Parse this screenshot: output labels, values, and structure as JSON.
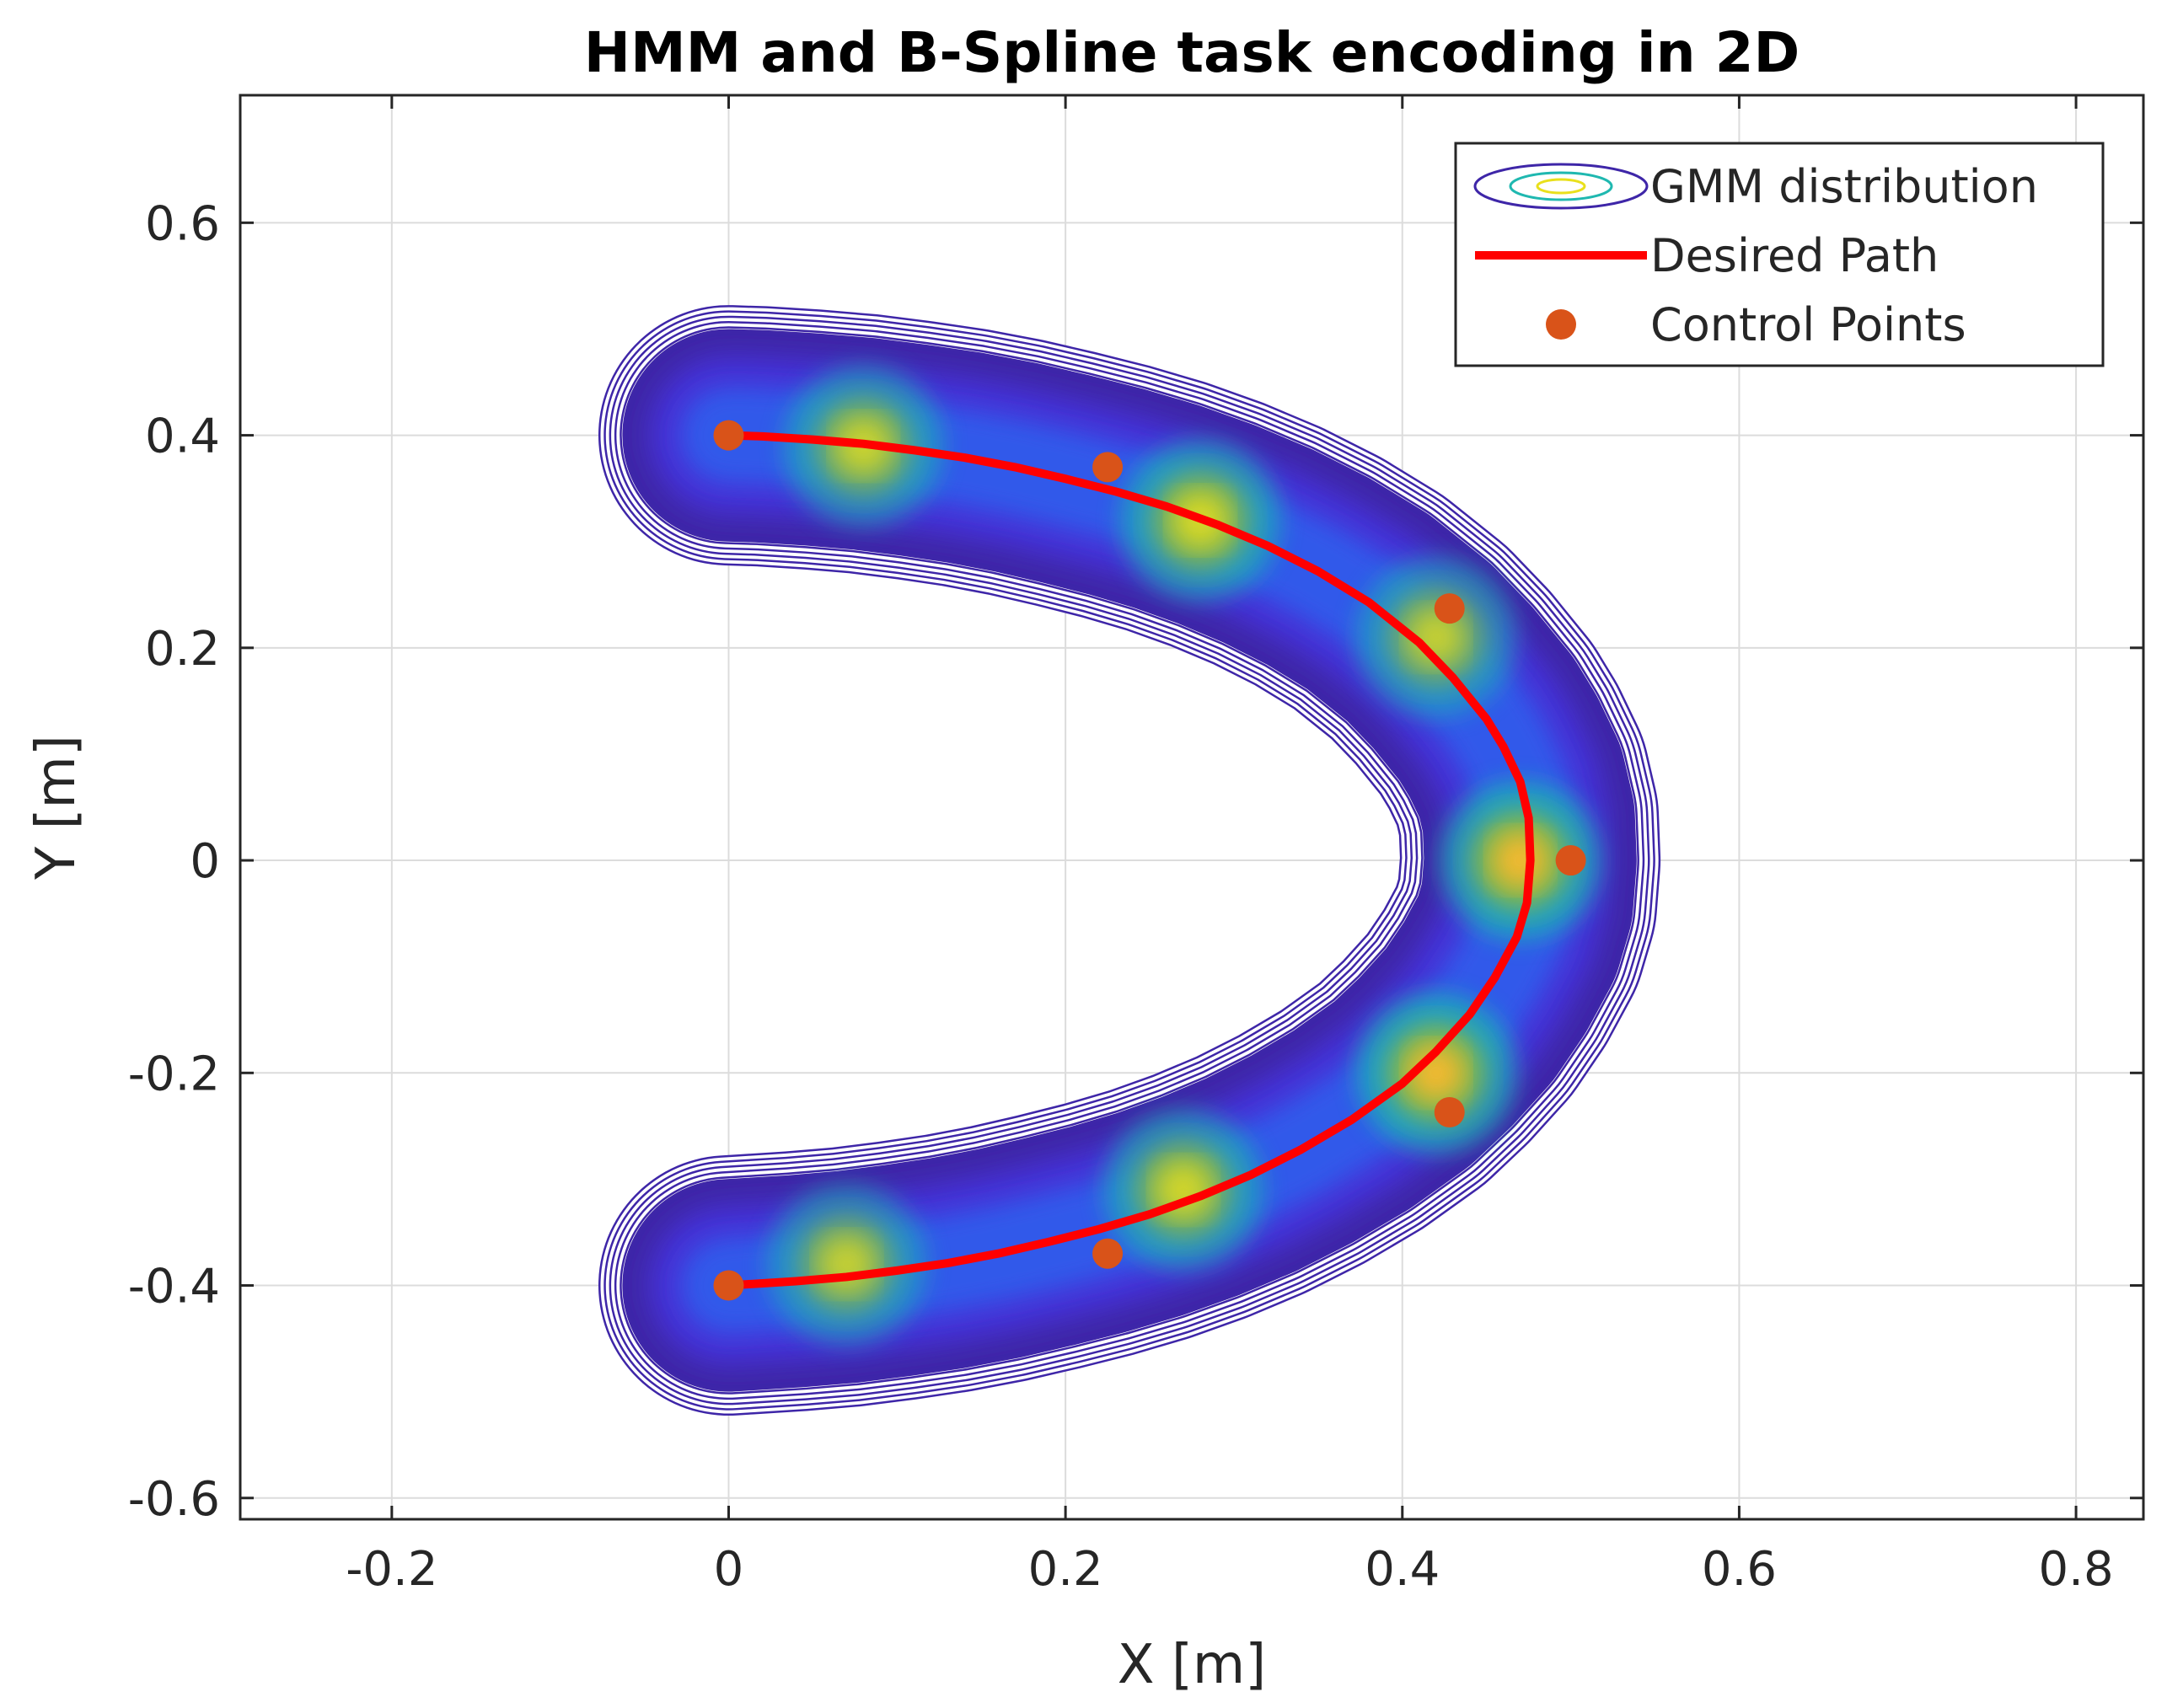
{
  "chart_data": {
    "type": "scatter",
    "title": "HMM and B-Spline task encoding in 2D",
    "xlabel": "X [m]",
    "ylabel": "Y [m]",
    "xlim": [
      -0.29,
      0.84
    ],
    "ylim": [
      -0.62,
      0.72
    ],
    "xticks": [
      -0.2,
      0,
      0.2,
      0.4,
      0.6,
      0.8
    ],
    "xtick_labels": [
      "-0.2",
      "0",
      "0.2",
      "0.4",
      "0.6",
      "0.8"
    ],
    "yticks": [
      -0.6,
      -0.4,
      -0.2,
      0,
      0.2,
      0.4,
      0.6
    ],
    "ytick_labels": [
      "-0.6",
      "-0.4",
      "-0.2",
      "0",
      "0.2",
      "0.4",
      "0.6"
    ],
    "grid": true,
    "legend_position": "top-right",
    "series": [
      {
        "name": "GMM distribution",
        "kind": "gmm-density",
        "colormap": "parula",
        "components": [
          {
            "mean": [
              0.08,
              0.39
            ],
            "weight": 0.8
          },
          {
            "mean": [
              0.28,
              0.32
            ],
            "weight": 0.9
          },
          {
            "mean": [
              0.42,
              0.21
            ],
            "weight": 0.75
          },
          {
            "mean": [
              0.47,
              0.0
            ],
            "weight": 1.0
          },
          {
            "mean": [
              0.42,
              -0.2
            ],
            "weight": 1.0
          },
          {
            "mean": [
              0.27,
              -0.31
            ],
            "weight": 0.85
          },
          {
            "mean": [
              0.07,
              -0.38
            ],
            "weight": 0.75
          }
        ]
      },
      {
        "name": "Desired Path",
        "kind": "line",
        "color": "#ff0000",
        "x": [
          0.0,
          0.02,
          0.05,
          0.08,
          0.11,
          0.14,
          0.17,
          0.2,
          0.23,
          0.26,
          0.29,
          0.32,
          0.35,
          0.38,
          0.41,
          0.43,
          0.45,
          0.46,
          0.47,
          0.475,
          0.476,
          0.474,
          0.468,
          0.455,
          0.44,
          0.42,
          0.4,
          0.37,
          0.34,
          0.31,
          0.28,
          0.25,
          0.22,
          0.19,
          0.16,
          0.13,
          0.1,
          0.07,
          0.04,
          0.01,
          0.0
        ],
        "y": [
          0.4,
          0.399,
          0.396,
          0.392,
          0.386,
          0.379,
          0.37,
          0.359,
          0.347,
          0.333,
          0.316,
          0.296,
          0.272,
          0.243,
          0.205,
          0.172,
          0.133,
          0.107,
          0.074,
          0.04,
          0.0,
          -0.04,
          -0.072,
          -0.11,
          -0.145,
          -0.18,
          -0.21,
          -0.244,
          -0.272,
          -0.296,
          -0.316,
          -0.333,
          -0.347,
          -0.359,
          -0.37,
          -0.379,
          -0.386,
          -0.392,
          -0.396,
          -0.399,
          -0.4
        ]
      },
      {
        "name": "Control Points",
        "kind": "scatter",
        "color": "#d95319",
        "x": [
          0.0,
          0.225,
          0.428,
          0.5,
          0.428,
          0.225,
          0.0
        ],
        "y": [
          0.4,
          0.37,
          0.237,
          0.0,
          -0.237,
          -0.37,
          -0.4
        ]
      }
    ]
  }
}
